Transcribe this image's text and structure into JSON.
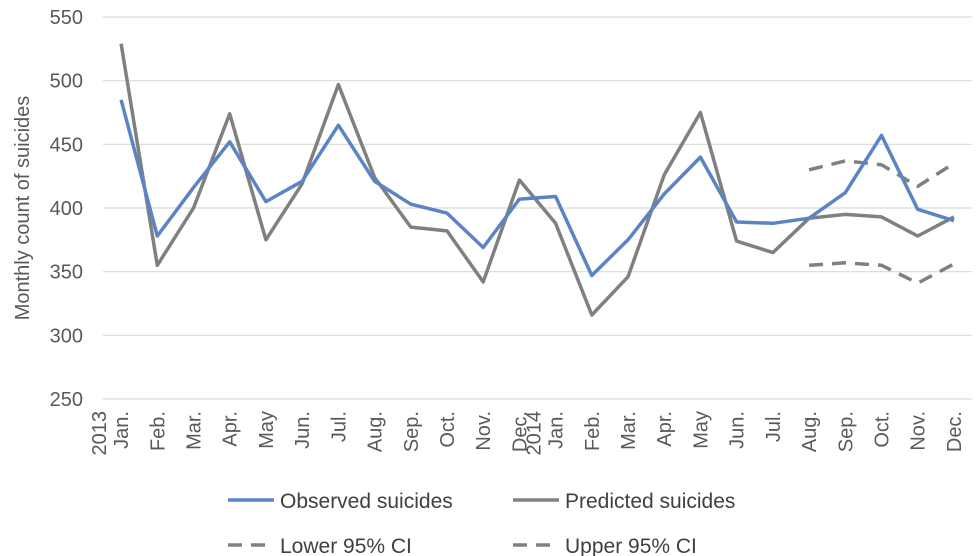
{
  "chart_data": {
    "type": "line",
    "title": "",
    "xlabel": "",
    "ylabel": "Monthly count of suicides",
    "ylim": [
      250,
      550
    ],
    "yticks": [
      250,
      300,
      350,
      400,
      450,
      500,
      550
    ],
    "grid": "horizontal",
    "legend_position": "bottom",
    "categories": [
      [
        "Jan.",
        "2013"
      ],
      [
        "Feb."
      ],
      [
        "Mar."
      ],
      [
        "Apr."
      ],
      [
        "May"
      ],
      [
        "Jun."
      ],
      [
        "Jul."
      ],
      [
        "Aug."
      ],
      [
        "Sep."
      ],
      [
        "Oct."
      ],
      [
        "Nov."
      ],
      [
        "Dec."
      ],
      [
        "Jan.",
        "2014"
      ],
      [
        "Feb."
      ],
      [
        "Mar."
      ],
      [
        "Apr."
      ],
      [
        "May"
      ],
      [
        "Jun."
      ],
      [
        "Jul."
      ],
      [
        "Aug."
      ],
      [
        "Sep."
      ],
      [
        "Oct."
      ],
      [
        "Nov."
      ],
      [
        "Dec."
      ]
    ],
    "series": [
      {
        "name": "Observed suicides",
        "color": "#5B84C4",
        "style": "solid",
        "values": [
          485,
          378,
          416,
          452,
          405,
          421,
          465,
          421,
          403,
          396,
          369,
          407,
          409,
          347,
          375,
          411,
          440,
          389,
          388,
          392,
          412,
          457,
          399,
          390
        ]
      },
      {
        "name": "Predicted suicides",
        "color": "#808080",
        "style": "solid",
        "values": [
          529,
          355,
          400,
          474,
          375,
          419,
          497,
          424,
          385,
          382,
          342,
          422,
          388,
          316,
          346,
          426,
          475,
          374,
          365,
          392,
          395,
          393,
          378,
          393
        ]
      },
      {
        "name": "Lower 95% CI",
        "color": "#808080",
        "style": "dashed",
        "values": [
          null,
          null,
          null,
          null,
          null,
          null,
          null,
          null,
          null,
          null,
          null,
          null,
          null,
          null,
          null,
          null,
          null,
          null,
          null,
          355,
          357,
          355,
          341,
          356
        ]
      },
      {
        "name": "Upper 95% CI",
        "color": "#808080",
        "style": "dashed",
        "values": [
          null,
          null,
          null,
          null,
          null,
          null,
          null,
          null,
          null,
          null,
          null,
          null,
          null,
          null,
          null,
          null,
          null,
          null,
          null,
          430,
          437,
          434,
          417,
          435
        ]
      }
    ]
  }
}
